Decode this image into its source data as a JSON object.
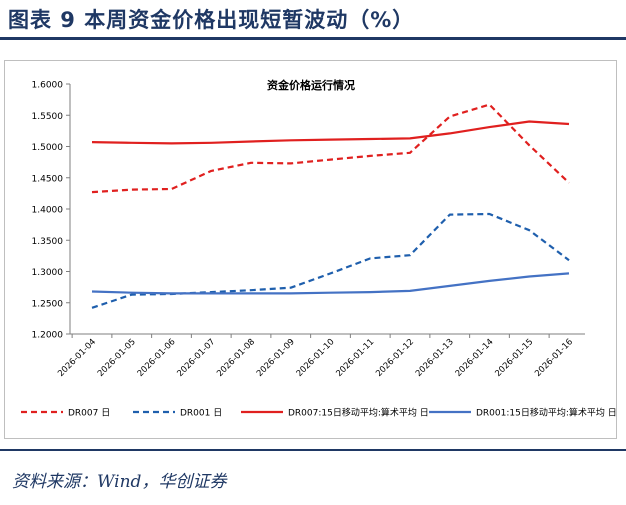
{
  "figure": {
    "title": "图表 9   本周资金价格出现短暂波动（%）",
    "source": "资料来源：Wind，华创证券"
  },
  "colors": {
    "header": "#1f3864",
    "red": "#e0201f",
    "blue": "#1f5fad",
    "blue_solid": "#4472c4"
  },
  "chart_data": {
    "type": "line",
    "title": "资金价格运行情况",
    "categories": [
      "2026-01-04",
      "2026-01-05",
      "2026-01-06",
      "2026-01-07",
      "2026-01-08",
      "2026-01-09",
      "2026-01-10",
      "2026-01-11",
      "2026-01-12",
      "2026-01-13",
      "2026-01-14",
      "2026-01-15",
      "2026-01-16"
    ],
    "ylim": [
      1.2,
      1.6
    ],
    "yticks": [
      "1.2000",
      "1.2500",
      "1.3000",
      "1.3500",
      "1.4000",
      "1.4500",
      "1.5000",
      "1.5500",
      "1.6000"
    ],
    "series": [
      {
        "name": "DR007 日",
        "style": "dashed",
        "color": "#e0201f",
        "values": [
          1.427,
          1.431,
          1.432,
          1.461,
          1.474,
          1.473,
          1.479,
          1.485,
          1.49,
          1.548,
          1.567,
          1.502,
          1.442
        ]
      },
      {
        "name": "DR001 日",
        "style": "dashed",
        "color": "#1f5fad",
        "values": [
          1.242,
          1.263,
          1.264,
          1.267,
          1.27,
          1.274,
          1.297,
          1.321,
          1.326,
          1.391,
          1.392,
          1.366,
          1.318
        ]
      },
      {
        "name": "DR007:15日移动平均:算术平均 日",
        "style": "solid",
        "color": "#e0201f",
        "values": [
          1.507,
          1.506,
          1.505,
          1.506,
          1.508,
          1.51,
          1.511,
          1.512,
          1.513,
          1.521,
          1.531,
          1.54,
          1.536
        ]
      },
      {
        "name": "DR001:15日移动平均:算术平均 日",
        "style": "solid",
        "color": "#4472c4",
        "values": [
          1.268,
          1.266,
          1.265,
          1.265,
          1.265,
          1.265,
          1.266,
          1.267,
          1.269,
          1.277,
          1.285,
          1.292,
          1.297
        ]
      }
    ]
  }
}
